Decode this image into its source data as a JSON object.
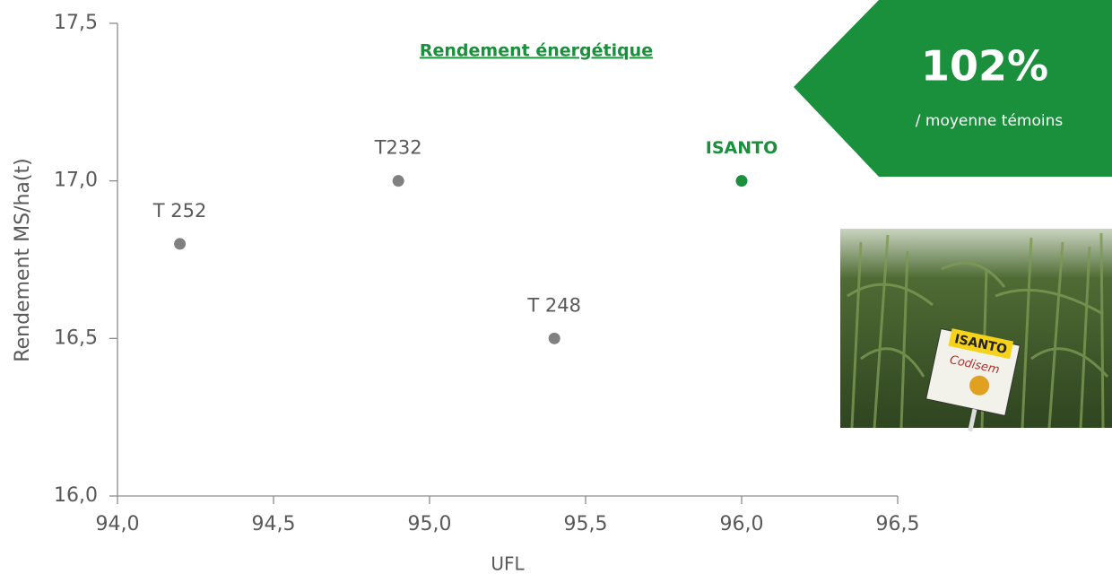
{
  "chart_data": {
    "type": "scatter",
    "title": "Rendement énergétique",
    "xlabel": "UFL",
    "ylabel": "Rendement MS/ha(t)",
    "x": [
      94.2,
      94.9,
      95.4,
      96.0
    ],
    "values": [
      16.8,
      17.0,
      16.5,
      17.0
    ],
    "point_labels": [
      "T 252",
      "T232",
      "T 248",
      "ISANTO"
    ],
    "colors": [
      "#808080",
      "#808080",
      "#808080",
      "#1a8f3c"
    ],
    "xlim": [
      94.0,
      96.5
    ],
    "xticks": [
      {
        "value": 94.0,
        "label": "94,0"
      },
      {
        "value": 94.5,
        "label": "94,5"
      },
      {
        "value": 95.0,
        "label": "95,0"
      },
      {
        "value": 95.5,
        "label": "95,5"
      },
      {
        "value": 96.0,
        "label": "96,0"
      },
      {
        "value": 96.5,
        "label": "96,5"
      }
    ],
    "ylim": [
      16.0,
      17.5
    ],
    "yticks": [
      {
        "value": 16.0,
        "label": "16,0"
      },
      {
        "value": 16.5,
        "label": "16,5"
      },
      {
        "value": 17.0,
        "label": "17,0"
      },
      {
        "value": 17.5,
        "label": "17,5"
      }
    ],
    "grid": false
  },
  "badge": {
    "value": "102%",
    "caption": "/ moyenne  témoins"
  },
  "photo": {
    "sign_title": "ISANTO",
    "sign_brand": "Codisem"
  }
}
